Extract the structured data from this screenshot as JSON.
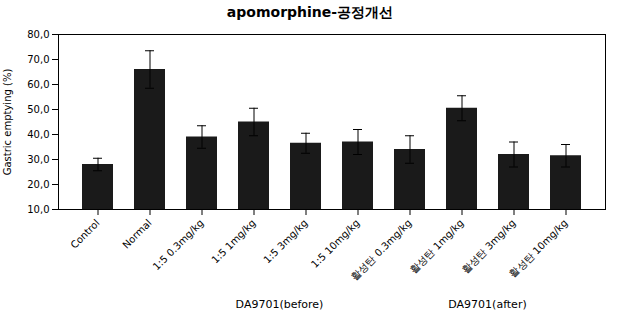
{
  "chart_data": {
    "type": "bar",
    "title": "apomorphine-공정개선",
    "ylabel": "Gastric emptying (%)",
    "categories": [
      "Control",
      "Normal",
      "1:5 0.3mg/kg",
      "1:5 1mg/kg",
      "1:5 3mg/kg",
      "1:5 10mg/kg",
      "활성탄 0.3mg/kg",
      "활성탄 1mg/kg",
      "활성탄 3mg/kg",
      "활성탄 10mg/kg"
    ],
    "values": [
      28.0,
      66.0,
      39.0,
      45.0,
      36.5,
      37.0,
      34.0,
      50.5,
      32.0,
      31.5
    ],
    "errors": [
      2.5,
      7.5,
      4.5,
      5.5,
      4.0,
      5.0,
      5.5,
      5.0,
      5.0,
      4.5
    ],
    "color": "#1a1a1a",
    "ylim": [
      10.0,
      80.0
    ],
    "yticks": [
      {
        "value": 10,
        "label": "10,0"
      },
      {
        "value": 20,
        "label": "20,0"
      },
      {
        "value": 30,
        "label": "30,0"
      },
      {
        "value": 40,
        "label": "40,0"
      },
      {
        "value": 50,
        "label": "50,0"
      },
      {
        "value": 60,
        "label": "60,0"
      },
      {
        "value": 70,
        "label": "70,0"
      },
      {
        "value": 80,
        "label": "80,0"
      }
    ],
    "grid": false,
    "annotations": [
      {
        "text": "DA9701(before)",
        "categories": [
          "1:5 0.3mg/kg",
          "1:5 1mg/kg",
          "1:5 3mg/kg",
          "1:5 10mg/kg"
        ]
      },
      {
        "text": "DA9701(after)",
        "categories": [
          "활성탄 0.3mg/kg",
          "활성탄 1mg/kg",
          "활성탄 3mg/kg",
          "활성탄 10mg/kg"
        ]
      }
    ]
  }
}
